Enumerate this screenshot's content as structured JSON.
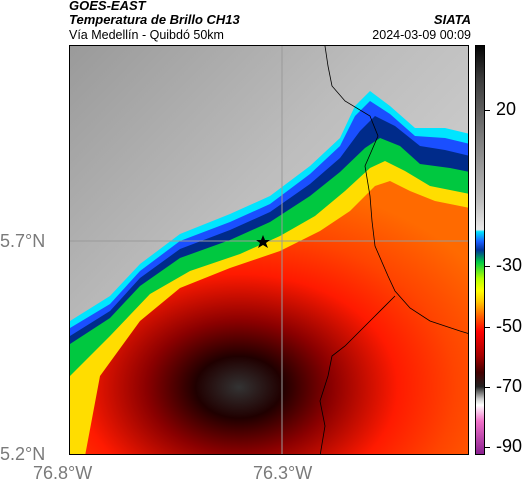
{
  "header": {
    "satellite": "GOES-EAST",
    "product": "Temperatura de Brillo CH13",
    "org": "SIATA",
    "region": "Vía Medellín - Quibdó 50km",
    "datetime": "2024-03-09 00:09"
  },
  "axes": {
    "lat_ticks": [
      "5.7°N",
      "5.2°N"
    ],
    "lon_ticks": [
      "76.8°W",
      "76.3°W"
    ]
  },
  "colorbar": {
    "labels": [
      "20",
      "-30",
      "-50",
      "-70",
      "-90"
    ]
  },
  "colors": {
    "grid": "#9a9a9a",
    "border_lines": "#000000",
    "marker": "#000000"
  }
}
